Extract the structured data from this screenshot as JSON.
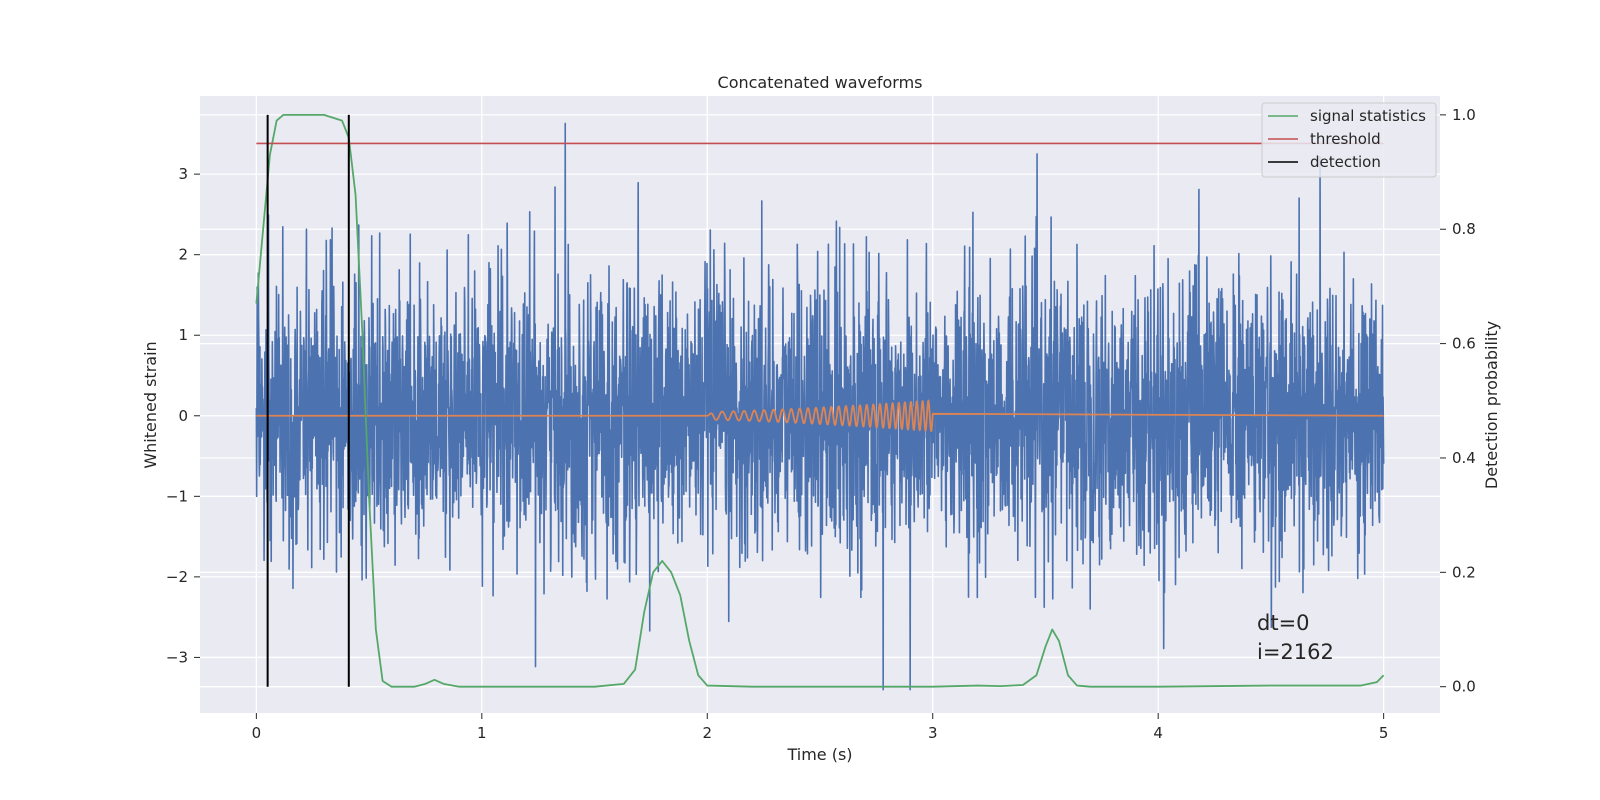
{
  "chart_data": {
    "type": "line",
    "title": "Concatenated waveforms",
    "xlabel": "Time (s)",
    "ylabel": "Whitened strain",
    "y2label": "Detection probability",
    "xlim": [
      -0.25,
      5.25
    ],
    "ylim": [
      -3.69,
      3.97
    ],
    "y2lim": [
      -0.046,
      1.033
    ],
    "xticks": [
      0,
      1,
      2,
      3,
      4,
      5
    ],
    "yticks": [
      -3,
      -2,
      -1,
      0,
      1,
      2,
      3
    ],
    "y2ticks": [
      0.0,
      0.2,
      0.4,
      0.6,
      0.8,
      1.0
    ],
    "xtick_labels": [
      "0",
      "1",
      "2",
      "3",
      "4",
      "5"
    ],
    "ytick_labels": [
      "−3",
      "−2",
      "−1",
      "0",
      "1",
      "2",
      "3"
    ],
    "y2tick_labels": [
      "0.0",
      "0.2",
      "0.4",
      "0.6",
      "0.8",
      "1.0"
    ],
    "grid": true,
    "legend_position": "top-right",
    "legend": [
      "signal statistics",
      "threshold",
      "detection"
    ],
    "annotations": [
      "dt=0",
      "i=2162"
    ],
    "colors": {
      "strain": "#4c72b0",
      "injected_waveform": "#dd8452",
      "signal_statistics": "#55a868",
      "threshold": "#c44e52",
      "detection": "#000000",
      "plot_bg": "#eaeaf2",
      "grid": "#ffffff"
    },
    "strain_noise": {
      "x_range": [
        0,
        5
      ],
      "samples": 4096,
      "sigma": 0.85,
      "note_peaks": [
        [
          1.37,
          3.63
        ],
        [
          2.78,
          -3.4
        ],
        [
          2.9,
          -3.4
        ]
      ]
    },
    "injected_waveform": {
      "x_range": [
        2.0,
        3.0
      ],
      "start_amplitude": 0.05,
      "end_amplitude": 0.19,
      "start_freq_hz": 18,
      "end_freq_hz": 40
    },
    "signal_statistics": {
      "axis": "right",
      "x": [
        0.0,
        0.03,
        0.06,
        0.09,
        0.12,
        0.16,
        0.2,
        0.3,
        0.38,
        0.41,
        0.44,
        0.47,
        0.5,
        0.53,
        0.56,
        0.6,
        0.7,
        0.75,
        0.79,
        0.83,
        0.9,
        1.2,
        1.5,
        1.63,
        1.68,
        1.72,
        1.76,
        1.8,
        1.84,
        1.88,
        1.92,
        1.96,
        2.0,
        2.2,
        3.0,
        3.2,
        3.3,
        3.4,
        3.46,
        3.5,
        3.53,
        3.56,
        3.6,
        3.64,
        3.7,
        4.0,
        4.5,
        4.9,
        4.97,
        5.0
      ],
      "y": [
        0.67,
        0.8,
        0.93,
        0.99,
        1.0,
        1.0,
        1.0,
        1.0,
        0.99,
        0.96,
        0.86,
        0.62,
        0.33,
        0.1,
        0.01,
        0.0,
        0.0,
        0.005,
        0.012,
        0.005,
        0.0,
        0.0,
        0.0,
        0.005,
        0.03,
        0.13,
        0.2,
        0.22,
        0.2,
        0.16,
        0.08,
        0.02,
        0.002,
        0.0,
        0.0,
        0.002,
        0.001,
        0.003,
        0.02,
        0.07,
        0.1,
        0.08,
        0.02,
        0.002,
        0.0,
        0.0,
        0.002,
        0.002,
        0.008,
        0.02
      ]
    },
    "threshold": {
      "axis": "right",
      "x": [
        0,
        5
      ],
      "y": 0.95
    },
    "detection": {
      "axis": "right",
      "x": [
        0.05,
        0.41
      ],
      "y_range": [
        0.0,
        1.0
      ]
    }
  }
}
